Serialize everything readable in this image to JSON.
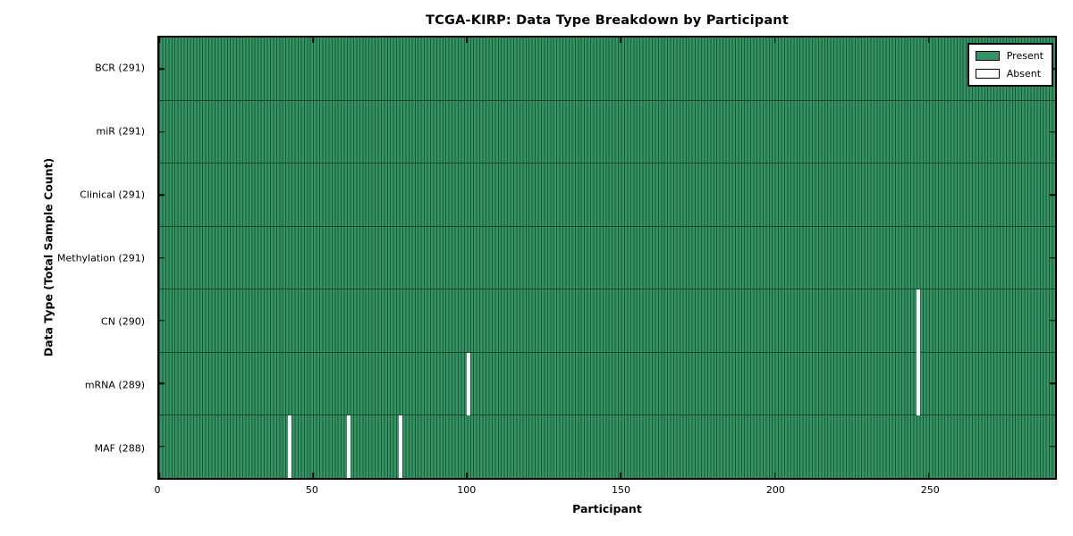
{
  "chart_data": {
    "type": "heatmap",
    "title": "TCGA-KIRP: Data Type Breakdown by Participant",
    "xlabel": "Participant",
    "ylabel": "Data Type (Total Sample Count)",
    "x_ticks": [
      0,
      50,
      100,
      150,
      200,
      250
    ],
    "x_range": [
      0,
      291
    ],
    "n_participants": 291,
    "rows": [
      {
        "data_type": "BCR",
        "label": "BCR (291)",
        "total_samples": 291,
        "absent_participants": []
      },
      {
        "data_type": "miR",
        "label": "miR (291)",
        "total_samples": 291,
        "absent_participants": []
      },
      {
        "data_type": "Clinical",
        "label": "Clinical (291)",
        "total_samples": 291,
        "absent_participants": []
      },
      {
        "data_type": "Methylation",
        "label": "Methylation (291)",
        "total_samples": 291,
        "absent_participants": []
      },
      {
        "data_type": "CN",
        "label": "CN (290)",
        "total_samples": 290,
        "absent_participants": [
          246
        ]
      },
      {
        "data_type": "mRNA",
        "label": "mRNA (289)",
        "total_samples": 289,
        "absent_participants": [
          100,
          246
        ]
      },
      {
        "data_type": "MAF",
        "label": "MAF (288)",
        "total_samples": 288,
        "absent_participants": [
          42,
          61,
          78
        ]
      }
    ],
    "legend": {
      "position": "upper right",
      "entries": [
        {
          "label": "Present",
          "color": "#349463"
        },
        {
          "label": "Absent",
          "color": "#ffffff"
        }
      ]
    },
    "colors": {
      "present_fill": "#349463",
      "present_edge": "#1d5838",
      "absent_fill": "#ffffff",
      "row_separator": "#18452c",
      "axis_border": "#000000",
      "background": "#ffffff"
    },
    "grid": false
  }
}
